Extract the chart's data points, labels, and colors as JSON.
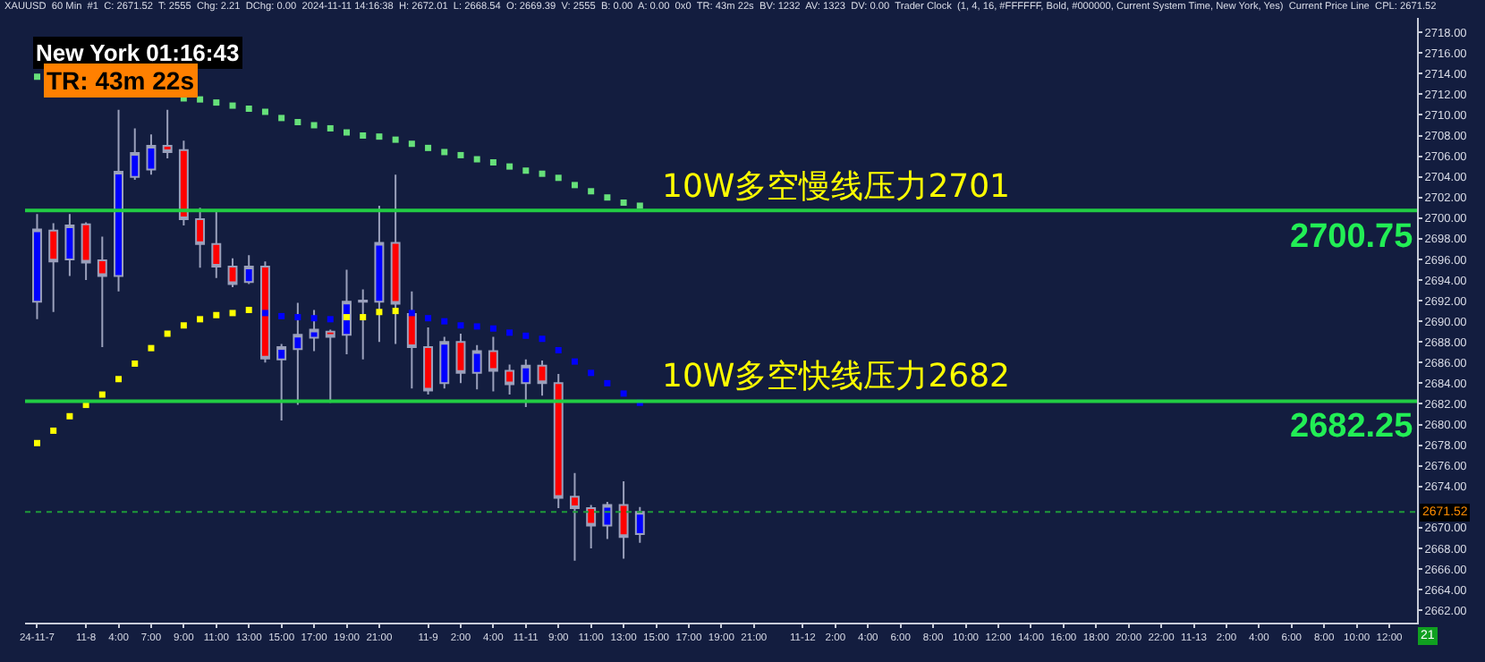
{
  "chart_data": {
    "type": "candlestick",
    "title": "XAUUSD  60 Min  #1  C: 2671.52  T: 2555  Chg: 2.21  DChg: 0.00  2024-11-11 14:16:38  H: 2672.01  L: 2668.54  O: 2669.39  V: 2555  B: 0.00  A: 0.00  0x0  TR: 43m 22s  BV: 1232  AV: 1323  DV: 0.00  Trader Clock  (1, 4, 16, #FFFFFF, Bold, #000000, Current System Time, New York, Yes)  Current Price Line  CPL: 2671.52",
    "categories": [
      "24-11-7",
      null,
      null,
      "11-8",
      null,
      "4:00",
      null,
      "7:00",
      null,
      "9:00",
      null,
      "11:00",
      null,
      "13:00",
      null,
      "15:00",
      null,
      "17:00",
      null,
      "19:00",
      null,
      "21:00",
      null,
      null,
      "11-9",
      null,
      "2:00",
      null,
      "4:00",
      null,
      "11-11",
      null,
      "9:00",
      null,
      "11:00",
      null,
      "13:00",
      null,
      "15:00",
      null,
      "17:00",
      null,
      "19:00",
      null,
      "21:00",
      null,
      null,
      "11-12",
      null,
      "2:00",
      null,
      "4:00",
      null,
      "6:00",
      null,
      "8:00",
      null,
      "10:00",
      null,
      "12:00",
      null,
      "14:00",
      null,
      "16:00",
      null,
      "18:00",
      null,
      "20:00",
      null,
      "22:00",
      null,
      "11-13",
      null,
      "2:00",
      null,
      "4:00",
      null,
      "6:00",
      null,
      "8:00",
      null,
      "10:00",
      null,
      "12:00",
      null
    ],
    "ohlc": [
      [
        2691.9,
        2700.4,
        2690.2,
        2698.9
      ],
      [
        2698.8,
        2699.5,
        2690.9,
        2695.8
      ],
      [
        2696.0,
        2700.4,
        2694.4,
        2699.3
      ],
      [
        2699.4,
        2699.6,
        2694.0,
        2695.7
      ],
      [
        2695.9,
        2698.2,
        2687.5,
        2694.4
      ],
      [
        2694.4,
        2710.5,
        2692.9,
        2704.5
      ],
      [
        2704.0,
        2708.7,
        2703.7,
        2706.3
      ],
      [
        2704.7,
        2708.1,
        2704.2,
        2707.0
      ],
      [
        2707.0,
        2710.5,
        2705.8,
        2706.4
      ],
      [
        2706.6,
        2707.5,
        2699.3,
        2699.9
      ],
      [
        2699.9,
        2701.0,
        2695.2,
        2697.5
      ],
      [
        2697.5,
        2700.6,
        2694.2,
        2695.3
      ],
      [
        2695.3,
        2696.1,
        2693.3,
        2693.6
      ],
      [
        2693.8,
        2696.4,
        2693.6,
        2695.3
      ],
      [
        2695.3,
        2695.8,
        2686.0,
        2686.4
      ],
      [
        2686.3,
        2687.8,
        2680.4,
        2687.5
      ],
      [
        2687.3,
        2691.8,
        2681.9,
        2688.7
      ],
      [
        2688.4,
        2691.1,
        2687.1,
        2689.2
      ],
      [
        2689.0,
        2689.2,
        2682.1,
        2688.5
      ],
      [
        2688.7,
        2695.0,
        2686.8,
        2691.9
      ],
      [
        2691.9,
        2693.1,
        2686.3,
        2692.0
      ],
      [
        2691.9,
        2701.2,
        2688.0,
        2697.6
      ],
      [
        2697.6,
        2704.2,
        2687.8,
        2691.7
      ],
      [
        2690.7,
        2692.9,
        2683.5,
        2687.5
      ],
      [
        2687.5,
        2689.4,
        2682.9,
        2683.3
      ],
      [
        2684.0,
        2688.5,
        2683.5,
        2688.0
      ],
      [
        2688.0,
        2688.8,
        2684.0,
        2685.0
      ],
      [
        2685.0,
        2687.7,
        2683.4,
        2687.1
      ],
      [
        2687.1,
        2688.5,
        2683.2,
        2685.2
      ],
      [
        2685.2,
        2685.8,
        2682.9,
        2683.9
      ],
      [
        2684.0,
        2686.3,
        2681.7,
        2685.7
      ],
      [
        2685.7,
        2686.2,
        2682.8,
        2684.0
      ],
      [
        2684.0,
        2684.9,
        2671.9,
        2672.9
      ],
      [
        2673.0,
        2675.3,
        2666.8,
        2671.9
      ],
      [
        2671.9,
        2672.2,
        2668.0,
        2670.2
      ],
      [
        2670.2,
        2672.5,
        2668.9,
        2672.2
      ],
      [
        2672.2,
        2674.5,
        2667.0,
        2669.1
      ],
      [
        2669.39,
        2672.01,
        2668.54,
        2671.52
      ],
      null,
      null,
      null,
      null,
      null,
      null,
      null,
      null,
      null,
      null,
      null,
      null,
      null,
      null,
      null,
      null,
      null,
      null,
      null,
      null,
      null,
      null,
      null,
      null,
      null,
      null,
      null,
      null,
      null,
      null,
      null,
      null,
      null,
      null,
      null,
      null,
      null,
      null,
      null,
      null,
      null,
      null,
      null,
      null,
      null,
      null,
      null
    ],
    "colors": [
      "#0000ff",
      "#ff0000",
      "#0000ff",
      "#ff0000",
      "#ff0000",
      "#0000ff",
      "#0000ff",
      "#0000ff",
      "#ff0000",
      "#ff0000",
      "#ff0000",
      "#ff0000",
      "#ff0000",
      "#0000ff",
      "#ff0000",
      "#0000ff",
      "#0000ff",
      "#0000ff",
      "#ff0000",
      "#0000ff",
      "#a0a4b8",
      "#0000ff",
      "#ff0000",
      "#ff0000",
      "#ff0000",
      "#0000ff",
      "#ff0000",
      "#0000ff",
      "#ff0000",
      "#ff0000",
      "#0000ff",
      "#ff0000",
      "#ff0000",
      "#ff0000",
      "#ff0000",
      "#0000ff",
      "#ff0000",
      "#0000ff",
      null,
      null,
      null,
      null,
      null,
      null,
      null,
      null,
      null,
      null,
      null,
      null,
      null,
      null,
      null,
      null,
      null,
      null,
      null,
      null,
      null,
      null,
      null,
      null,
      null,
      null,
      null,
      null,
      null,
      null,
      null,
      null,
      null,
      null,
      null,
      null,
      null,
      null,
      null,
      null,
      null,
      null,
      null,
      null,
      null,
      null,
      null
    ],
    "series": [
      {
        "type": "scatter",
        "marker": "square",
        "color": "#66e07a",
        "values": [
          2713.7,
          null,
          null,
          null,
          null,
          null,
          null,
          null,
          null,
          2711.6,
          2711.5,
          2711.2,
          2710.9,
          2710.6,
          2710.3,
          2709.7,
          2709.3,
          2709.0,
          2708.7,
          2708.3,
          2708.0,
          2707.9,
          2707.6,
          2707.2,
          2706.8,
          2706.4,
          2706.1,
          2705.7,
          2705.4,
          2705.0,
          2704.6,
          2704.3,
          2703.9,
          2703.2,
          2702.6,
          2702.0,
          2701.5,
          2701.2,
          null,
          null,
          null,
          null,
          null,
          null,
          null,
          null,
          null,
          null,
          null,
          null,
          null,
          null,
          null,
          null,
          null,
          null,
          null,
          null,
          null,
          null,
          null,
          null,
          null,
          null,
          null,
          null,
          null,
          null,
          null,
          null,
          null,
          null,
          null,
          null,
          null,
          null,
          null,
          null,
          null,
          null,
          null,
          null,
          null,
          null,
          null
        ]
      },
      {
        "type": "scatter",
        "marker": "square",
        "color": "#ffff00",
        "values": [
          2678.2,
          2679.4,
          2680.8,
          2681.9,
          2682.9,
          2684.4,
          2685.9,
          2687.4,
          2688.8,
          2689.6,
          2690.2,
          2690.6,
          2690.8,
          2691.1,
          null,
          null,
          null,
          null,
          null,
          2690.4,
          2690.4,
          2690.9,
          2691.0,
          null,
          null,
          null,
          null,
          null,
          null,
          null,
          null,
          null,
          null,
          null,
          null,
          null,
          null,
          null,
          null,
          null,
          null,
          null,
          null,
          null,
          null,
          null,
          null,
          null,
          null,
          null,
          null,
          null,
          null,
          null,
          null,
          null,
          null,
          null,
          null,
          null,
          null,
          null,
          null,
          null,
          null,
          null,
          null,
          null,
          null,
          null,
          null,
          null,
          null,
          null,
          null,
          null,
          null,
          null,
          null,
          null,
          null,
          null,
          null,
          null,
          null
        ]
      },
      {
        "type": "scatter",
        "marker": "square",
        "color": "#0000ff",
        "values": [
          null,
          null,
          null,
          null,
          null,
          null,
          null,
          null,
          null,
          null,
          null,
          null,
          null,
          null,
          2690.8,
          2690.5,
          2690.4,
          2690.3,
          2690.2,
          null,
          null,
          null,
          null,
          2690.8,
          2690.3,
          2690.0,
          2689.6,
          2689.5,
          2689.3,
          2688.9,
          2688.6,
          2688.3,
          2687.2,
          2686.1,
          2685.0,
          2684.0,
          2683.0,
          2682.1,
          null,
          null,
          null,
          null,
          null,
          null,
          null,
          null,
          null,
          null,
          null,
          null,
          null,
          null,
          null,
          null,
          null,
          null,
          null,
          null,
          null,
          null,
          null,
          null,
          null,
          null,
          null,
          null,
          null,
          null,
          null,
          null,
          null,
          null,
          null,
          null,
          null,
          null,
          null,
          null,
          null,
          null,
          null,
          null,
          null,
          null,
          null
        ]
      }
    ],
    "ref_lines": [
      {
        "axis": "y",
        "value": 2700.75,
        "label": "2700.75",
        "color": "#22cc44",
        "line_style": "solid"
      },
      {
        "axis": "y",
        "value": 2682.25,
        "label": "2682.25",
        "color": "#22cc44",
        "line_style": "solid"
      },
      {
        "axis": "y",
        "value": 2671.52,
        "label": "2671.52",
        "color": "#1f9a3a",
        "line_style": "dotted"
      }
    ],
    "annotations": [
      "New York 01:16:43",
      "TR: 43m 22s",
      "21",
      {
        "text": "10W多空慢线压力2701",
        "y": 2700.75
      },
      {
        "text": "10W多空快线压力2682",
        "y": 2682.25
      }
    ],
    "ylim": [
      2660.8,
      2719.4
    ],
    "yticks": [
      {
        "value": 2662,
        "label": "2662.00"
      },
      {
        "value": 2664,
        "label": "2664.00"
      },
      {
        "value": 2666,
        "label": "2666.00"
      },
      {
        "value": 2668,
        "label": "2668.00"
      },
      {
        "value": 2670,
        "label": "2670.00"
      },
      {
        "value": 2674,
        "label": "2674.00"
      },
      {
        "value": 2676,
        "label": "2676.00"
      },
      {
        "value": 2678,
        "label": "2678.00"
      },
      {
        "value": 2680,
        "label": "2680.00"
      },
      {
        "value": 2682,
        "label": "2682.00"
      },
      {
        "value": 2684,
        "label": "2684.00"
      },
      {
        "value": 2686,
        "label": "2686.00"
      },
      {
        "value": 2688,
        "label": "2688.00"
      },
      {
        "value": 2690,
        "label": "2690.00"
      },
      {
        "value": 2692,
        "label": "2692.00"
      },
      {
        "value": 2694,
        "label": "2694.00"
      },
      {
        "value": 2696,
        "label": "2696.00"
      },
      {
        "value": 2698,
        "label": "2698.00"
      },
      {
        "value": 2700,
        "label": "2700.00"
      },
      {
        "value": 2702,
        "label": "2702.00"
      },
      {
        "value": 2704,
        "label": "2704.00"
      },
      {
        "value": 2706,
        "label": "2706.00"
      },
      {
        "value": 2708,
        "label": "2708.00"
      },
      {
        "value": 2710,
        "label": "2710.00"
      },
      {
        "value": 2712,
        "label": "2712.00"
      },
      {
        "value": 2714,
        "label": "2714.00"
      },
      {
        "value": 2716,
        "label": "2716.00"
      },
      {
        "value": 2718,
        "label": "2718.00"
      }
    ],
    "grid": false
  }
}
